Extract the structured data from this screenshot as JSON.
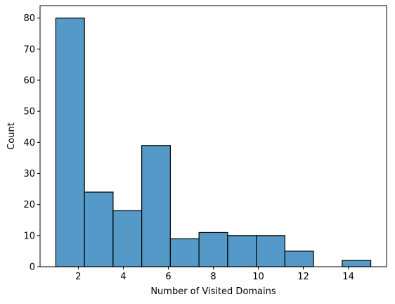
{
  "chart_data": {
    "type": "bar",
    "subtype": "histogram",
    "xlabel": "Number of Visited Domains",
    "ylabel": "Count",
    "bin_edges": [
      1.0,
      2.2727,
      3.5455,
      4.8182,
      6.0909,
      7.3636,
      8.6364,
      9.9091,
      11.1818,
      12.4545,
      13.7273,
      15.0
    ],
    "counts": [
      80,
      24,
      18,
      39,
      9,
      11,
      10,
      10,
      5,
      0,
      2
    ],
    "xlim": [
      0.3,
      15.7
    ],
    "ylim": [
      0,
      84
    ],
    "xticks": [
      2,
      4,
      6,
      8,
      10,
      12,
      14
    ],
    "yticks": [
      0,
      10,
      20,
      30,
      40,
      50,
      60,
      70,
      80
    ],
    "grid": false,
    "colors": {
      "bar_fill": "#5499c7",
      "bar_edge": "#000000"
    }
  }
}
